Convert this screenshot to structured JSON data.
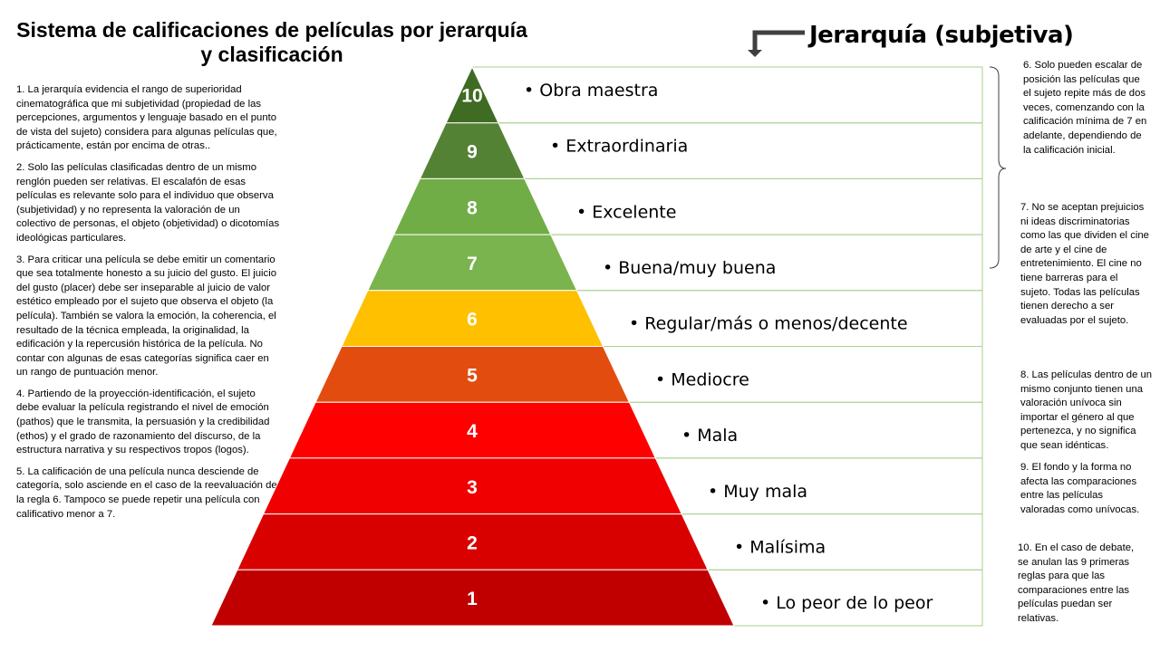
{
  "title": "Sistema de calificaciones de películas por jerarquía y clasificación",
  "hierarchy_label": "Jerarquía (subjetiva)",
  "levels": [
    {
      "number": "10",
      "label": "Obra maestra",
      "color": "#3f6b22"
    },
    {
      "number": "9",
      "label": "Extraordinaria",
      "color": "#548235"
    },
    {
      "number": "8",
      "label": "Excelente",
      "color": "#70ad47"
    },
    {
      "number": "7",
      "label": "Buena/muy buena",
      "color": "#7ab44e"
    },
    {
      "number": "6",
      "label": "Regular/más o menos/decente",
      "color": "#ffc000"
    },
    {
      "number": "5",
      "label": "Mediocre",
      "color": "#e24d0f"
    },
    {
      "number": "4",
      "label": "Mala",
      "color": "#ff0000"
    },
    {
      "number": "3",
      "label": "Muy mala",
      "color": "#f00000"
    },
    {
      "number": "2",
      "label": "Malísima",
      "color": "#d90000"
    },
    {
      "number": "1",
      "label": "Lo peor de lo peor",
      "color": "#c00000"
    }
  ],
  "rules_left": [
    "1. La jerarquía evidencia el rango de superioridad cinematográfica que mi subjetividad (propiedad de las percepciones, argumentos y lenguaje basado en el punto de vista del sujeto) considera para algunas películas que, prácticamente, están por encima de otras..",
    "2. Solo las películas clasificadas dentro de un mismo renglón pueden ser relativas. El escalafón de esas películas es relevante solo para el individuo que observa (subjetividad) y no representa la valoración de un colectivo de personas, el objeto (objetividad) o dicotomías ideológicas particulares.",
    "3. Para criticar una película se debe emitir un comentario que sea totalmente honesto a su juicio del gusto. El juicio del gusto (placer) debe ser inseparable al juicio de valor estético empleado por el sujeto que observa el objeto (la película). También se valora la emoción, la coherencia, el resultado de la técnica empleada, la originalidad, la edificación y la repercusión histórica de la película. No contar con algunas de esas categorías significa caer en un rango de puntuación menor.",
    "4. Partiendo de la proyección-identificación, el sujeto debe evaluar la película registrando el nivel de emoción (pathos) que le transmita, la persuasión y la credibilidad (ethos) y el grado de razonamiento del discurso, de la estructura narrativa y su respectivos tropos (logos).",
    "5. La calificación de una película nunca desciende de categoría, solo asciende en el caso de la reevaluación de la regla 6. Tampoco se puede repetir una película con calificativo menor a 7."
  ],
  "rules_right": [
    "6. Solo pueden escalar de posición las películas que el sujeto repite más de dos veces, comenzando con la calificación mínima de 7 en adelante, dependiendo de la calificación inicial.",
    "7. No se aceptan prejuicios ni ideas discriminatorias como las que dividen el cine de arte y el cine de entretenimiento. El cine no tiene barreras para el sujeto. Todas las películas tienen derecho a ser evaluadas por el sujeto.",
    "8. Las películas dentro de un mismo conjunto tienen una valoración unívoca sin importar el género al que pertenezca, y no significa que sean idénticas.",
    "9. El fondo y la forma no afecta las comparaciones entre las películas valoradas como unívocas.",
    "10. En el caso de debate, se anulan las 9 primeras reglas para que las comparaciones entre las películas puedan ser relativas."
  ],
  "frame_color": "#a9d18e"
}
